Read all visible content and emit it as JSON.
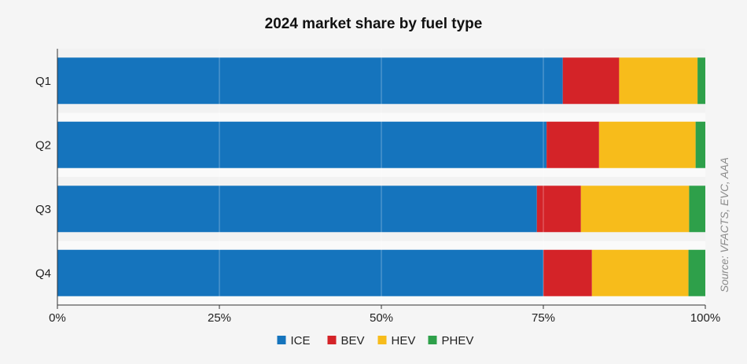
{
  "chart_data": {
    "type": "bar",
    "orientation": "horizontal",
    "stacked": true,
    "title": "2024 market share by fuel type",
    "categories": [
      "Q1",
      "Q2",
      "Q3",
      "Q4"
    ],
    "series": [
      {
        "name": "ICE",
        "color": "#1574bd",
        "values": [
          78.0,
          75.5,
          74.0,
          75.0
        ]
      },
      {
        "name": "BEV",
        "color": "#d42328",
        "values": [
          8.7,
          8.1,
          6.8,
          7.5
        ]
      },
      {
        "name": "HEV",
        "color": "#f7bc1b",
        "values": [
          12.1,
          14.9,
          16.7,
          14.9
        ]
      },
      {
        "name": "PHEV",
        "color": "#2ea04a",
        "values": [
          1.2,
          1.5,
          2.5,
          2.6
        ]
      }
    ],
    "x_ticks": [
      "0%",
      "25%",
      "50%",
      "75%",
      "100%"
    ],
    "xlim": [
      0,
      100
    ],
    "grid": true,
    "legend_position": "bottom",
    "source": "Source: VFACTS, EVC, AAA"
  }
}
